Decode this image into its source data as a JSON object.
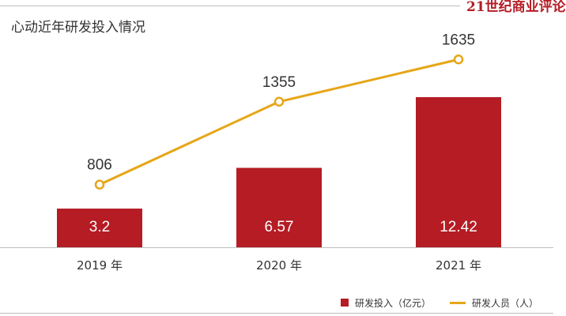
{
  "brand": {
    "logo_text": "21世纪商业评论"
  },
  "chart_data": {
    "type": "bar",
    "title": "心动近年研发投入情况",
    "categories": [
      "2019 年",
      "2020 年",
      "2021 年"
    ],
    "series": [
      {
        "name": "研发投入（亿元）",
        "type": "bar",
        "values": [
          3.2,
          6.57,
          12.42
        ],
        "color": "#b51c24"
      },
      {
        "name": "研发人员（人）",
        "type": "line",
        "values": [
          806,
          1355,
          1635
        ],
        "color": "#e6a618"
      }
    ],
    "ylim_bar": [
      0,
      14
    ],
    "ylim_line": [
      0,
      2000
    ],
    "grid": false,
    "legend_position": "bottom-right"
  }
}
